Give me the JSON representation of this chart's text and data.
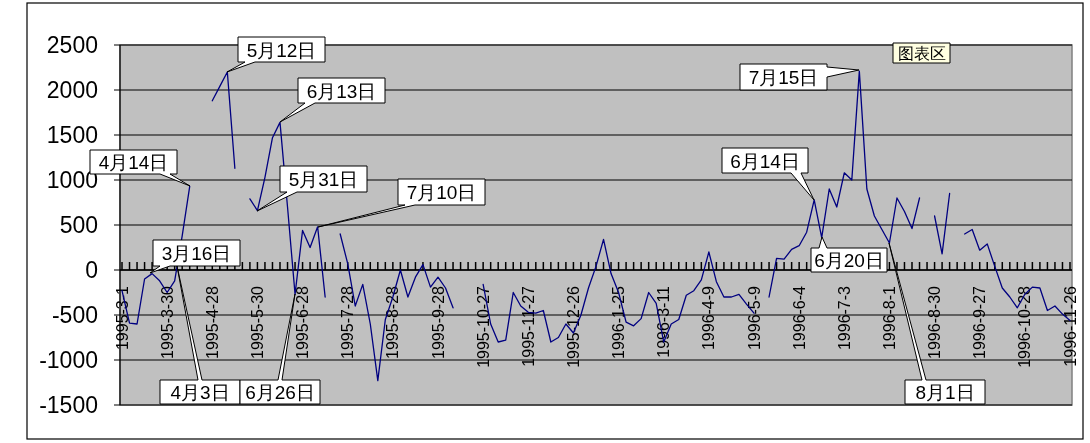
{
  "chart_data": {
    "type": "line",
    "color": "#000080",
    "categories": [
      "1995-3-1",
      null,
      null,
      null,
      null,
      null,
      "1995-3-30",
      null,
      null,
      null,
      null,
      null,
      "1995-4-28",
      null,
      null,
      null,
      null,
      null,
      "1995-5-30",
      null,
      null,
      null,
      null,
      null,
      "1995-6-28",
      null,
      null,
      null,
      null,
      null,
      "1995-7-28",
      null,
      null,
      null,
      null,
      null,
      "1995-8-28",
      null,
      null,
      null,
      null,
      null,
      "1995-9-28",
      null,
      null,
      null,
      null,
      null,
      "1995-10-27",
      null,
      null,
      null,
      null,
      null,
      "1995-11-27",
      null,
      null,
      null,
      null,
      null,
      "1995-12-26",
      null,
      null,
      null,
      null,
      null,
      "1996-1-25",
      null,
      null,
      null,
      null,
      null,
      "1996-3-11",
      null,
      null,
      null,
      null,
      null,
      "1996-4-9",
      null,
      null,
      null,
      null,
      null,
      "1996-5-9",
      null,
      null,
      null,
      null,
      null,
      "1996-6-4",
      null,
      null,
      null,
      null,
      null,
      "1996-7-3",
      null,
      null,
      null,
      null,
      null,
      "1996-8-1",
      null,
      null,
      null,
      null,
      null,
      "1996-8-30",
      null,
      null,
      null,
      null,
      null,
      "1996-9-27",
      null,
      null,
      null,
      null,
      null,
      "1996-10-28",
      null,
      null,
      null,
      null,
      null,
      "1996-11-26"
    ],
    "values": [
      -230,
      -590,
      -600,
      -100,
      -40,
      -120,
      -250,
      -120,
      380,
      930,
      null,
      null,
      1880,
      2040,
      2200,
      1130,
      null,
      790,
      660,
      1030,
      1470,
      1640,
      700,
      -270,
      440,
      250,
      480,
      -300,
      null,
      400,
      70,
      -400,
      -160,
      -600,
      -1230,
      -550,
      -300,
      0,
      -300,
      -80,
      60,
      -190,
      -80,
      -200,
      -420,
      null,
      null,
      null,
      -160,
      -600,
      -800,
      -780,
      -250,
      -400,
      -470,
      -480,
      -450,
      -800,
      -750,
      -600,
      -700,
      -500,
      -200,
      40,
      340,
      -40,
      -250,
      -580,
      -620,
      -540,
      -250,
      -370,
      -800,
      -600,
      -550,
      -280,
      -230,
      -110,
      200,
      -130,
      -300,
      -300,
      -270,
      -380,
      -480,
      null,
      -300,
      130,
      120,
      230,
      270,
      420,
      780,
      360,
      900,
      700,
      1080,
      1000,
      2210,
      900,
      600,
      450,
      300,
      800,
      650,
      460,
      800,
      null,
      600,
      180,
      850,
      null,
      400,
      450,
      220,
      290,
      40,
      -200,
      -300,
      -420,
      -270,
      -190,
      -200,
      -450,
      -400,
      -490,
      -560
    ],
    "ylim": [
      -1500,
      2500
    ],
    "yticks": [
      -1500,
      -1000,
      -500,
      0,
      500,
      1000,
      1500,
      2000,
      2500
    ],
    "grid": "y",
    "annotations": [
      "3月16日",
      "4月3日",
      "4月14日",
      "5月12日",
      "6月13日",
      "5月31日",
      "7月10日",
      "6月26日",
      "6月14日",
      "7月15日",
      "6月20日",
      "8月1日",
      "图表区"
    ]
  }
}
